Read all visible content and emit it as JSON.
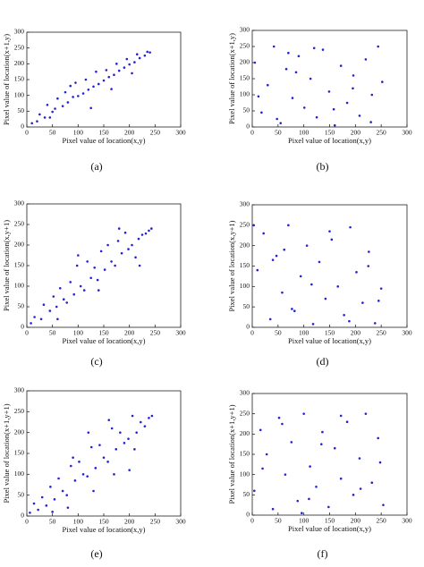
{
  "chart_data": [
    {
      "type": "scatter",
      "caption": "(a)",
      "xlabel": "Pixel value of location(x,y)",
      "ylabel": "Pixel value of location(x+1,y)",
      "color": "#2323d6",
      "xlim": [
        0,
        300
      ],
      "ylim": [
        0,
        300
      ],
      "xticks": [
        0,
        50,
        100,
        150,
        200,
        250,
        300
      ],
      "yticks": [
        0,
        50,
        100,
        150,
        200,
        250,
        300
      ],
      "x": [
        10,
        20,
        25,
        35,
        40,
        50,
        55,
        60,
        70,
        75,
        80,
        90,
        95,
        100,
        110,
        115,
        120,
        130,
        135,
        140,
        150,
        155,
        160,
        170,
        175,
        180,
        190,
        195,
        200,
        210,
        215,
        220,
        230,
        235,
        240,
        45,
        85,
        125,
        165,
        205
      ],
      "values": [
        12,
        18,
        40,
        30,
        70,
        48,
        58,
        90,
        66,
        110,
        78,
        95,
        140,
        98,
        106,
        150,
        118,
        128,
        175,
        136,
        147,
        180,
        158,
        165,
        200,
        178,
        188,
        215,
        198,
        205,
        230,
        218,
        226,
        238,
        236,
        30,
        130,
        60,
        120,
        170
      ]
    },
    {
      "type": "scatter",
      "caption": "(b)",
      "xlabel": "Pixel value of location(x,y)",
      "ylabel": "Pixel value of location(x+1,y)",
      "color": "#2323d6",
      "xlim": [
        0,
        300
      ],
      "ylim": [
        0,
        300
      ],
      "xticks": [
        0,
        50,
        100,
        150,
        200,
        250,
        300
      ],
      "yticks": [
        0,
        50,
        100,
        150,
        200,
        250,
        300
      ],
      "x": [
        5,
        18,
        30,
        42,
        55,
        66,
        78,
        90,
        101,
        113,
        125,
        137,
        149,
        160,
        172,
        184,
        196,
        208,
        220,
        232,
        244,
        252,
        12,
        48,
        85,
        120,
        158,
        195,
        230,
        70
      ],
      "values": [
        200,
        45,
        130,
        250,
        12,
        180,
        90,
        220,
        60,
        150,
        30,
        240,
        110,
        5,
        190,
        75,
        160,
        35,
        210,
        100,
        250,
        140,
        95,
        25,
        170,
        245,
        55,
        120,
        15,
        230
      ]
    },
    {
      "type": "scatter",
      "caption": "(c)",
      "xlabel": "Pixel value of location(x,y)",
      "ylabel": "Pixel value of location(x,y+1)",
      "color": "#2323d6",
      "xlim": [
        0,
        300
      ],
      "ylim": [
        0,
        300
      ],
      "xticks": [
        0,
        50,
        100,
        150,
        200,
        250,
        300
      ],
      "yticks": [
        0,
        50,
        100,
        150,
        200,
        250,
        300
      ],
      "x": [
        8,
        15,
        28,
        33,
        45,
        52,
        58,
        65,
        72,
        78,
        85,
        92,
        98,
        105,
        112,
        118,
        125,
        132,
        138,
        145,
        152,
        158,
        165,
        172,
        178,
        185,
        192,
        198,
        205,
        212,
        218,
        225,
        232,
        238,
        243,
        60,
        100,
        140,
        180,
        220
      ],
      "values": [
        10,
        25,
        20,
        55,
        40,
        75,
        50,
        95,
        68,
        60,
        110,
        80,
        150,
        100,
        90,
        160,
        120,
        145,
        115,
        185,
        140,
        200,
        160,
        150,
        210,
        180,
        230,
        190,
        200,
        170,
        215,
        225,
        228,
        235,
        240,
        20,
        175,
        90,
        240,
        150
      ]
    },
    {
      "type": "scatter",
      "caption": "(d)",
      "xlabel": "Pixel value of location(x,y)",
      "ylabel": "Pixel value of location(x,y+1)",
      "color": "#2323d6",
      "xlim": [
        0,
        300
      ],
      "ylim": [
        0,
        300
      ],
      "xticks": [
        0,
        50,
        100,
        150,
        200,
        250,
        300
      ],
      "yticks": [
        0,
        50,
        100,
        150,
        200,
        250,
        300
      ],
      "x": [
        10,
        22,
        35,
        47,
        58,
        70,
        82,
        94,
        106,
        118,
        130,
        142,
        154,
        166,
        178,
        190,
        202,
        214,
        226,
        238,
        250,
        3,
        40,
        77,
        115,
        150,
        188,
        225,
        62,
        245
      ],
      "values": [
        140,
        230,
        20,
        175,
        85,
        250,
        40,
        125,
        200,
        8,
        160,
        70,
        215,
        100,
        30,
        245,
        135,
        60,
        185,
        10,
        95,
        250,
        165,
        45,
        105,
        235,
        15,
        150,
        190,
        65
      ]
    },
    {
      "type": "scatter",
      "caption": "(e)",
      "xlabel": "Pixel value of location(x,y)",
      "ylabel": "Pixel value of location(x+1,y+1)",
      "color": "#2323d6",
      "xlim": [
        0,
        300
      ],
      "ylim": [
        0,
        300
      ],
      "xticks": [
        0,
        50,
        100,
        150,
        200,
        250,
        300
      ],
      "yticks": [
        0,
        50,
        100,
        150,
        200,
        250,
        300
      ],
      "x": [
        6,
        14,
        22,
        30,
        38,
        46,
        54,
        62,
        70,
        78,
        86,
        94,
        102,
        110,
        118,
        126,
        134,
        142,
        150,
        158,
        166,
        174,
        182,
        190,
        198,
        206,
        214,
        222,
        230,
        238,
        244,
        50,
        90,
        130,
        170,
        210,
        120,
        160,
        200,
        80
      ],
      "values": [
        8,
        30,
        15,
        45,
        25,
        70,
        40,
        90,
        60,
        50,
        120,
        85,
        130,
        100,
        95,
        165,
        115,
        170,
        140,
        130,
        210,
        160,
        200,
        175,
        185,
        240,
        200,
        225,
        215,
        235,
        240,
        10,
        140,
        60,
        100,
        160,
        200,
        230,
        110,
        20
      ]
    },
    {
      "type": "scatter",
      "caption": "(f)",
      "xlabel": "Pixel value of location(x,y)",
      "ylabel": "Pixel value of location(x+1,y+1)",
      "color": "#2323d6",
      "xlim": [
        0,
        300
      ],
      "ylim": [
        0,
        300
      ],
      "xticks": [
        0,
        50,
        100,
        150,
        200,
        250,
        300
      ],
      "yticks": [
        0,
        50,
        100,
        150,
        200,
        250,
        300
      ],
      "x": [
        4,
        16,
        28,
        40,
        52,
        64,
        76,
        88,
        100,
        112,
        124,
        136,
        148,
        160,
        172,
        184,
        196,
        208,
        220,
        232,
        244,
        254,
        20,
        58,
        96,
        134,
        172,
        210,
        248,
        110
      ],
      "values": [
        60,
        210,
        150,
        15,
        240,
        100,
        180,
        35,
        250,
        120,
        70,
        205,
        20,
        165,
        90,
        230,
        50,
        140,
        250,
        80,
        190,
        25,
        115,
        225,
        5,
        175,
        245,
        65,
        130,
        40
      ]
    }
  ]
}
